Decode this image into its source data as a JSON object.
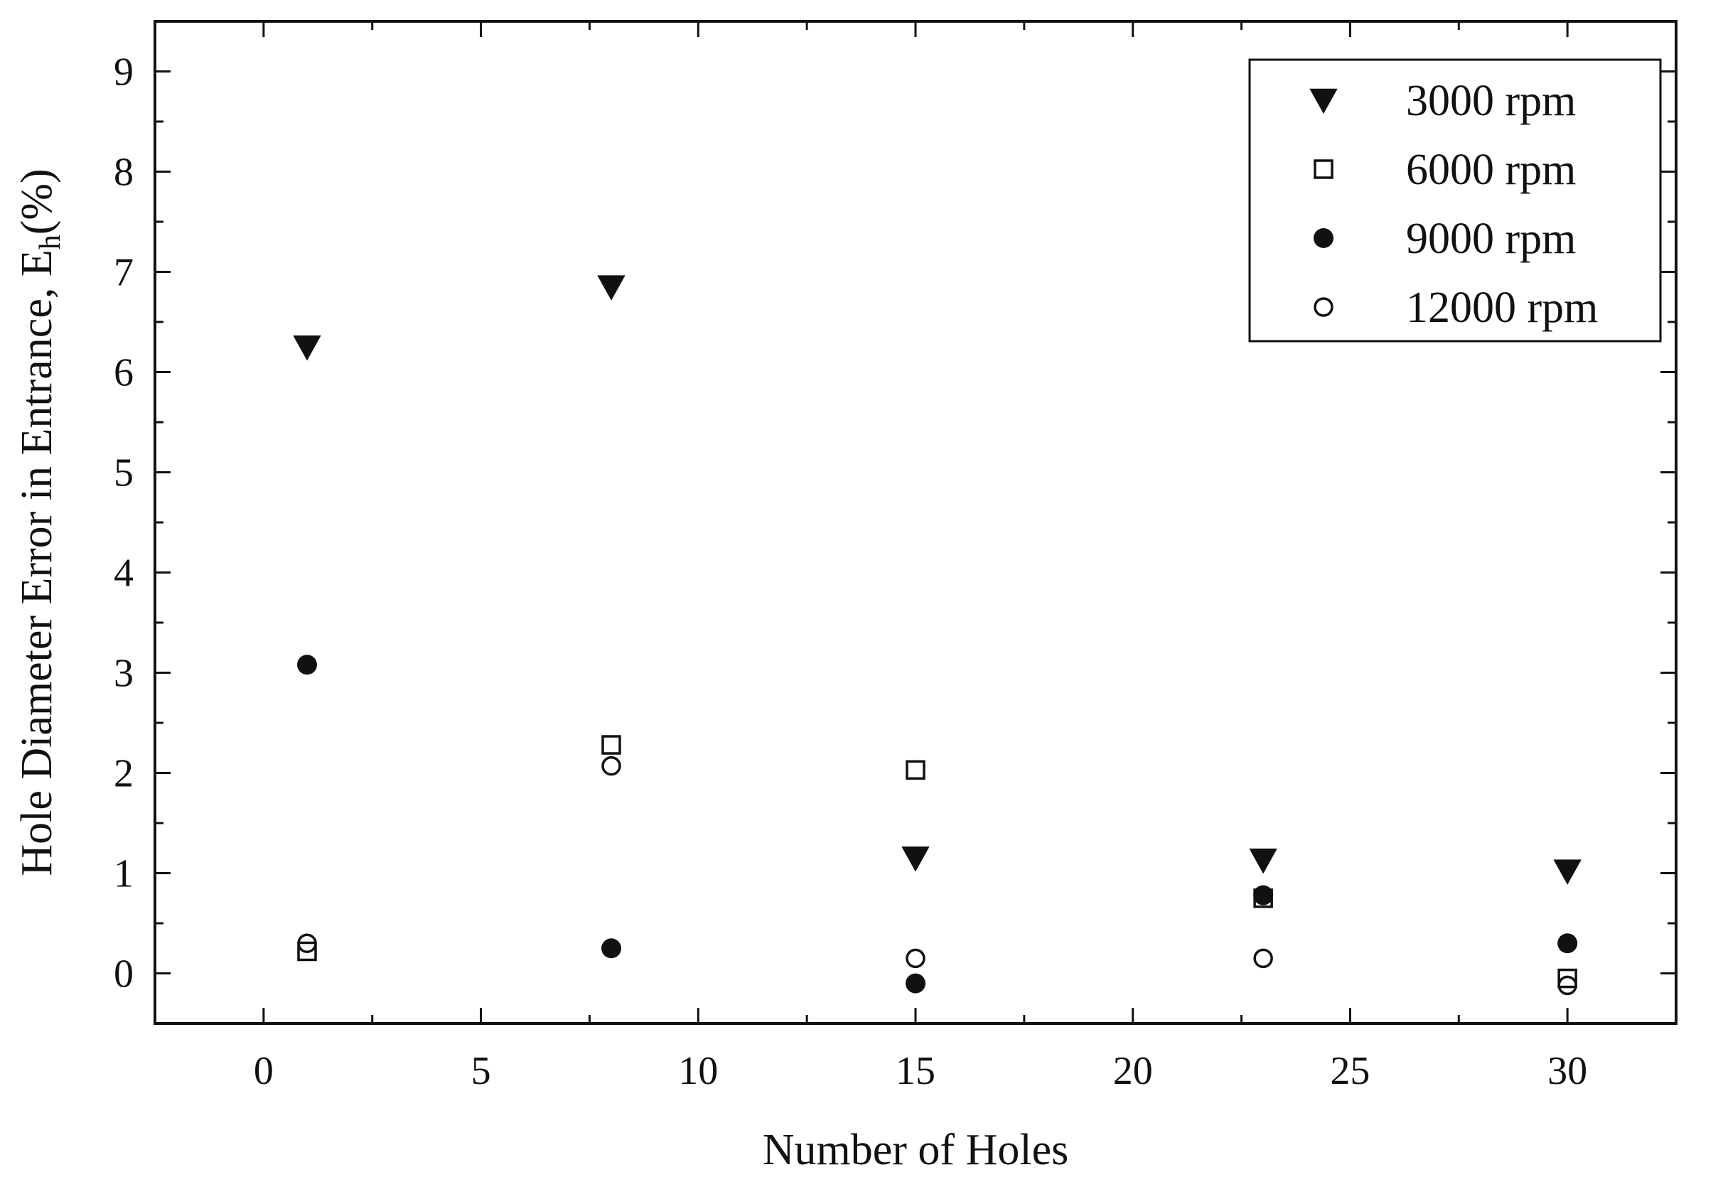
{
  "chart_data": {
    "type": "scatter",
    "xlabel": "Number of Holes",
    "ylabel_main": "Hole Diameter Error in Entrance, E",
    "ylabel_sub": "h",
    "ylabel_unit": "(%)",
    "xlim": [
      -2.5,
      32.5
    ],
    "ylim": [
      -0.5,
      9.5
    ],
    "xticks": [
      0,
      5,
      10,
      15,
      20,
      25,
      30
    ],
    "yticks": [
      0,
      1,
      2,
      3,
      4,
      5,
      6,
      7,
      8,
      9
    ],
    "grid": false,
    "legend_position": "top-right",
    "series": [
      {
        "name": "3000 rpm",
        "marker": "triangle-down-filled",
        "x": [
          1,
          8,
          15,
          23,
          30
        ],
        "y": [
          6.25,
          6.85,
          1.15,
          1.13,
          1.02
        ]
      },
      {
        "name": "6000 rpm",
        "marker": "square-open",
        "x": [
          1,
          8,
          15,
          23,
          30
        ],
        "y": [
          0.22,
          2.28,
          2.03,
          0.75,
          -0.05
        ]
      },
      {
        "name": "9000 rpm",
        "marker": "circle-filled",
        "x": [
          1,
          8,
          15,
          23,
          30
        ],
        "y": [
          3.08,
          0.25,
          -0.1,
          0.78,
          0.3
        ]
      },
      {
        "name": "12000 rpm",
        "marker": "circle-open",
        "x": [
          1,
          8,
          15,
          23,
          30
        ],
        "y": [
          0.3,
          2.07,
          0.15,
          0.15,
          -0.12
        ]
      }
    ]
  }
}
